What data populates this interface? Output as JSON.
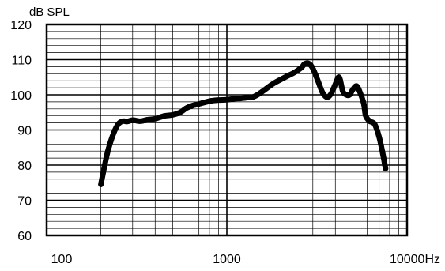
{
  "chart_data": {
    "type": "line",
    "ylabel": "dB SPL",
    "x_scale": "log",
    "xlim": [
      100,
      10000
    ],
    "ylim": [
      60,
      120
    ],
    "x_ticks": [
      100,
      1000,
      10000
    ],
    "x_tick_labels": [
      "100",
      "1000",
      "10000Hz"
    ],
    "y_ticks": [
      60,
      70,
      80,
      90,
      100,
      110,
      120
    ],
    "y_tick_labels": [
      "60",
      "70",
      "80",
      "90",
      "100",
      "110",
      "120"
    ],
    "grid": "on",
    "series": [
      {
        "color": "#000000",
        "points": [
          [
            200,
            74.5
          ],
          [
            210,
            80
          ],
          [
            220,
            84.5
          ],
          [
            235,
            89
          ],
          [
            250,
            91.7
          ],
          [
            265,
            92.5
          ],
          [
            280,
            92.4
          ],
          [
            300,
            92.8
          ],
          [
            330,
            92.5
          ],
          [
            360,
            92.9
          ],
          [
            400,
            93.2
          ],
          [
            450,
            94
          ],
          [
            500,
            94.3
          ],
          [
            550,
            95
          ],
          [
            600,
            96.3
          ],
          [
            650,
            97
          ],
          [
            700,
            97.4
          ],
          [
            800,
            98.2
          ],
          [
            900,
            98.5
          ],
          [
            1000,
            98.6
          ],
          [
            1100,
            98.9
          ],
          [
            1200,
            99
          ],
          [
            1300,
            99.2
          ],
          [
            1400,
            99.4
          ],
          [
            1500,
            100.2
          ],
          [
            1600,
            101.2
          ],
          [
            1800,
            103.1
          ],
          [
            2000,
            104.4
          ],
          [
            2200,
            105.5
          ],
          [
            2400,
            106.5
          ],
          [
            2600,
            107.8
          ],
          [
            2700,
            108.8
          ],
          [
            2850,
            108.9
          ],
          [
            3000,
            107.5
          ],
          [
            3200,
            104
          ],
          [
            3400,
            100.6
          ],
          [
            3600,
            99.3
          ],
          [
            3800,
            100.4
          ],
          [
            4000,
            103
          ],
          [
            4200,
            105
          ],
          [
            4400,
            101
          ],
          [
            4600,
            100
          ],
          [
            4800,
            100
          ],
          [
            5000,
            101.5
          ],
          [
            5250,
            102.5
          ],
          [
            5500,
            100.5
          ],
          [
            5750,
            97.5
          ],
          [
            5900,
            94
          ],
          [
            6200,
            92.5
          ],
          [
            6600,
            91.7
          ],
          [
            7000,
            88
          ],
          [
            7350,
            83
          ],
          [
            7600,
            79
          ]
        ]
      }
    ]
  }
}
